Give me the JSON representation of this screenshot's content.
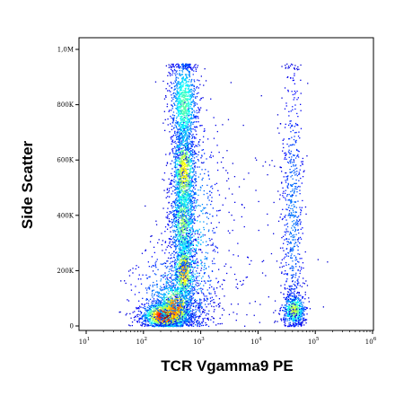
{
  "chart_data": {
    "type": "scatter",
    "subtype": "flow-cytometry density dot plot",
    "xlabel": "TCR Vgamma9 PE",
    "ylabel": "Side Scatter",
    "x_scale": "log",
    "xlim": [
      10,
      1000000
    ],
    "y_scale": "linear",
    "ylim": [
      0,
      1050000
    ],
    "x_ticks": [
      {
        "value": 10,
        "base": "10",
        "exp": "1"
      },
      {
        "value": 100,
        "base": "10",
        "exp": "2"
      },
      {
        "value": 1000,
        "base": "10",
        "exp": "3"
      },
      {
        "value": 10000,
        "base": "10",
        "exp": "4"
      },
      {
        "value": 100000,
        "base": "10",
        "exp": "5"
      },
      {
        "value": 1000000,
        "base": "10",
        "exp": "6"
      }
    ],
    "y_ticks": [
      {
        "value": 0,
        "label": "0"
      },
      {
        "value": 200000,
        "label": "200K"
      },
      {
        "value": 400000,
        "label": "400K"
      },
      {
        "value": 600000,
        "label": "600K"
      },
      {
        "value": 800000,
        "label": "800K"
      },
      {
        "value": 1000000,
        "label": "1,0M"
      }
    ],
    "grid": false,
    "legend": "none",
    "colormap": "jet (blue = low density, red = high density)",
    "populations": [
      {
        "x_center": 500,
        "x_spread_log10": 0.12,
        "y_range": [
          0,
          950000
        ],
        "relative_density": "high",
        "peak_density_at_y": 50000
      },
      {
        "x_center": 45000,
        "x_spread_log10": 0.1,
        "y_range": [
          0,
          950000
        ],
        "relative_density": "low",
        "peak_density_at_y": 70000
      }
    ]
  }
}
